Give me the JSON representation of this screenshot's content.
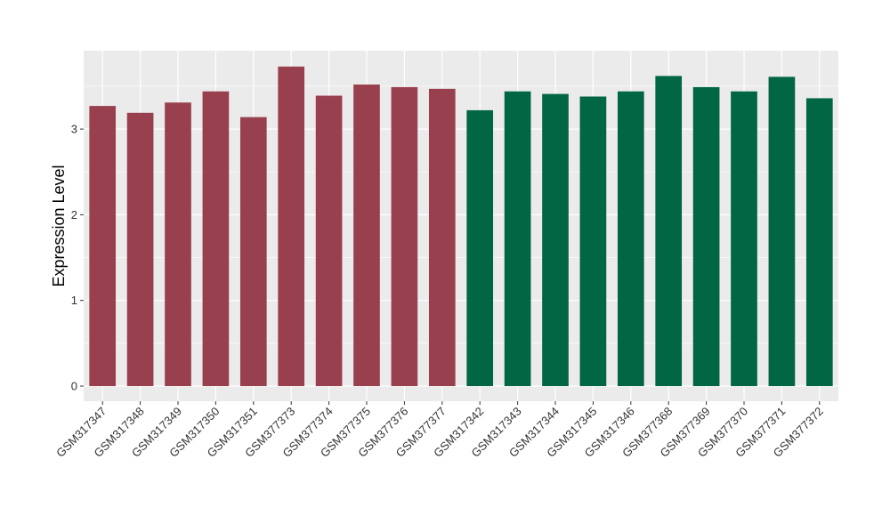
{
  "chart_data": {
    "type": "bar",
    "title": "",
    "xlabel": "",
    "ylabel": "Expression Level",
    "ylim": [
      -0.17,
      3.9
    ],
    "yticks": [
      0,
      1,
      2,
      3
    ],
    "grid": true,
    "legend": "none",
    "categories": [
      "GSM317347",
      "GSM317348",
      "GSM317349",
      "GSM317350",
      "GSM317351",
      "GSM377373",
      "GSM377374",
      "GSM377375",
      "GSM377376",
      "GSM377377",
      "GSM317342",
      "GSM317343",
      "GSM317344",
      "GSM317345",
      "GSM317346",
      "GSM377368",
      "GSM377369",
      "GSM377370",
      "GSM377371",
      "GSM377372"
    ],
    "values": [
      3.27,
      3.19,
      3.31,
      3.44,
      3.14,
      3.73,
      3.39,
      3.52,
      3.49,
      3.47,
      3.22,
      3.44,
      3.41,
      3.38,
      3.44,
      3.62,
      3.49,
      3.44,
      3.61,
      3.36
    ],
    "groups": [
      0,
      0,
      0,
      0,
      0,
      0,
      0,
      0,
      0,
      0,
      1,
      1,
      1,
      1,
      1,
      1,
      1,
      1,
      1,
      1
    ],
    "colors": [
      "#99404e",
      "#006644"
    ]
  },
  "style": {
    "panel_bg": "#ebebeb",
    "grid_major": "#ffffff"
  }
}
